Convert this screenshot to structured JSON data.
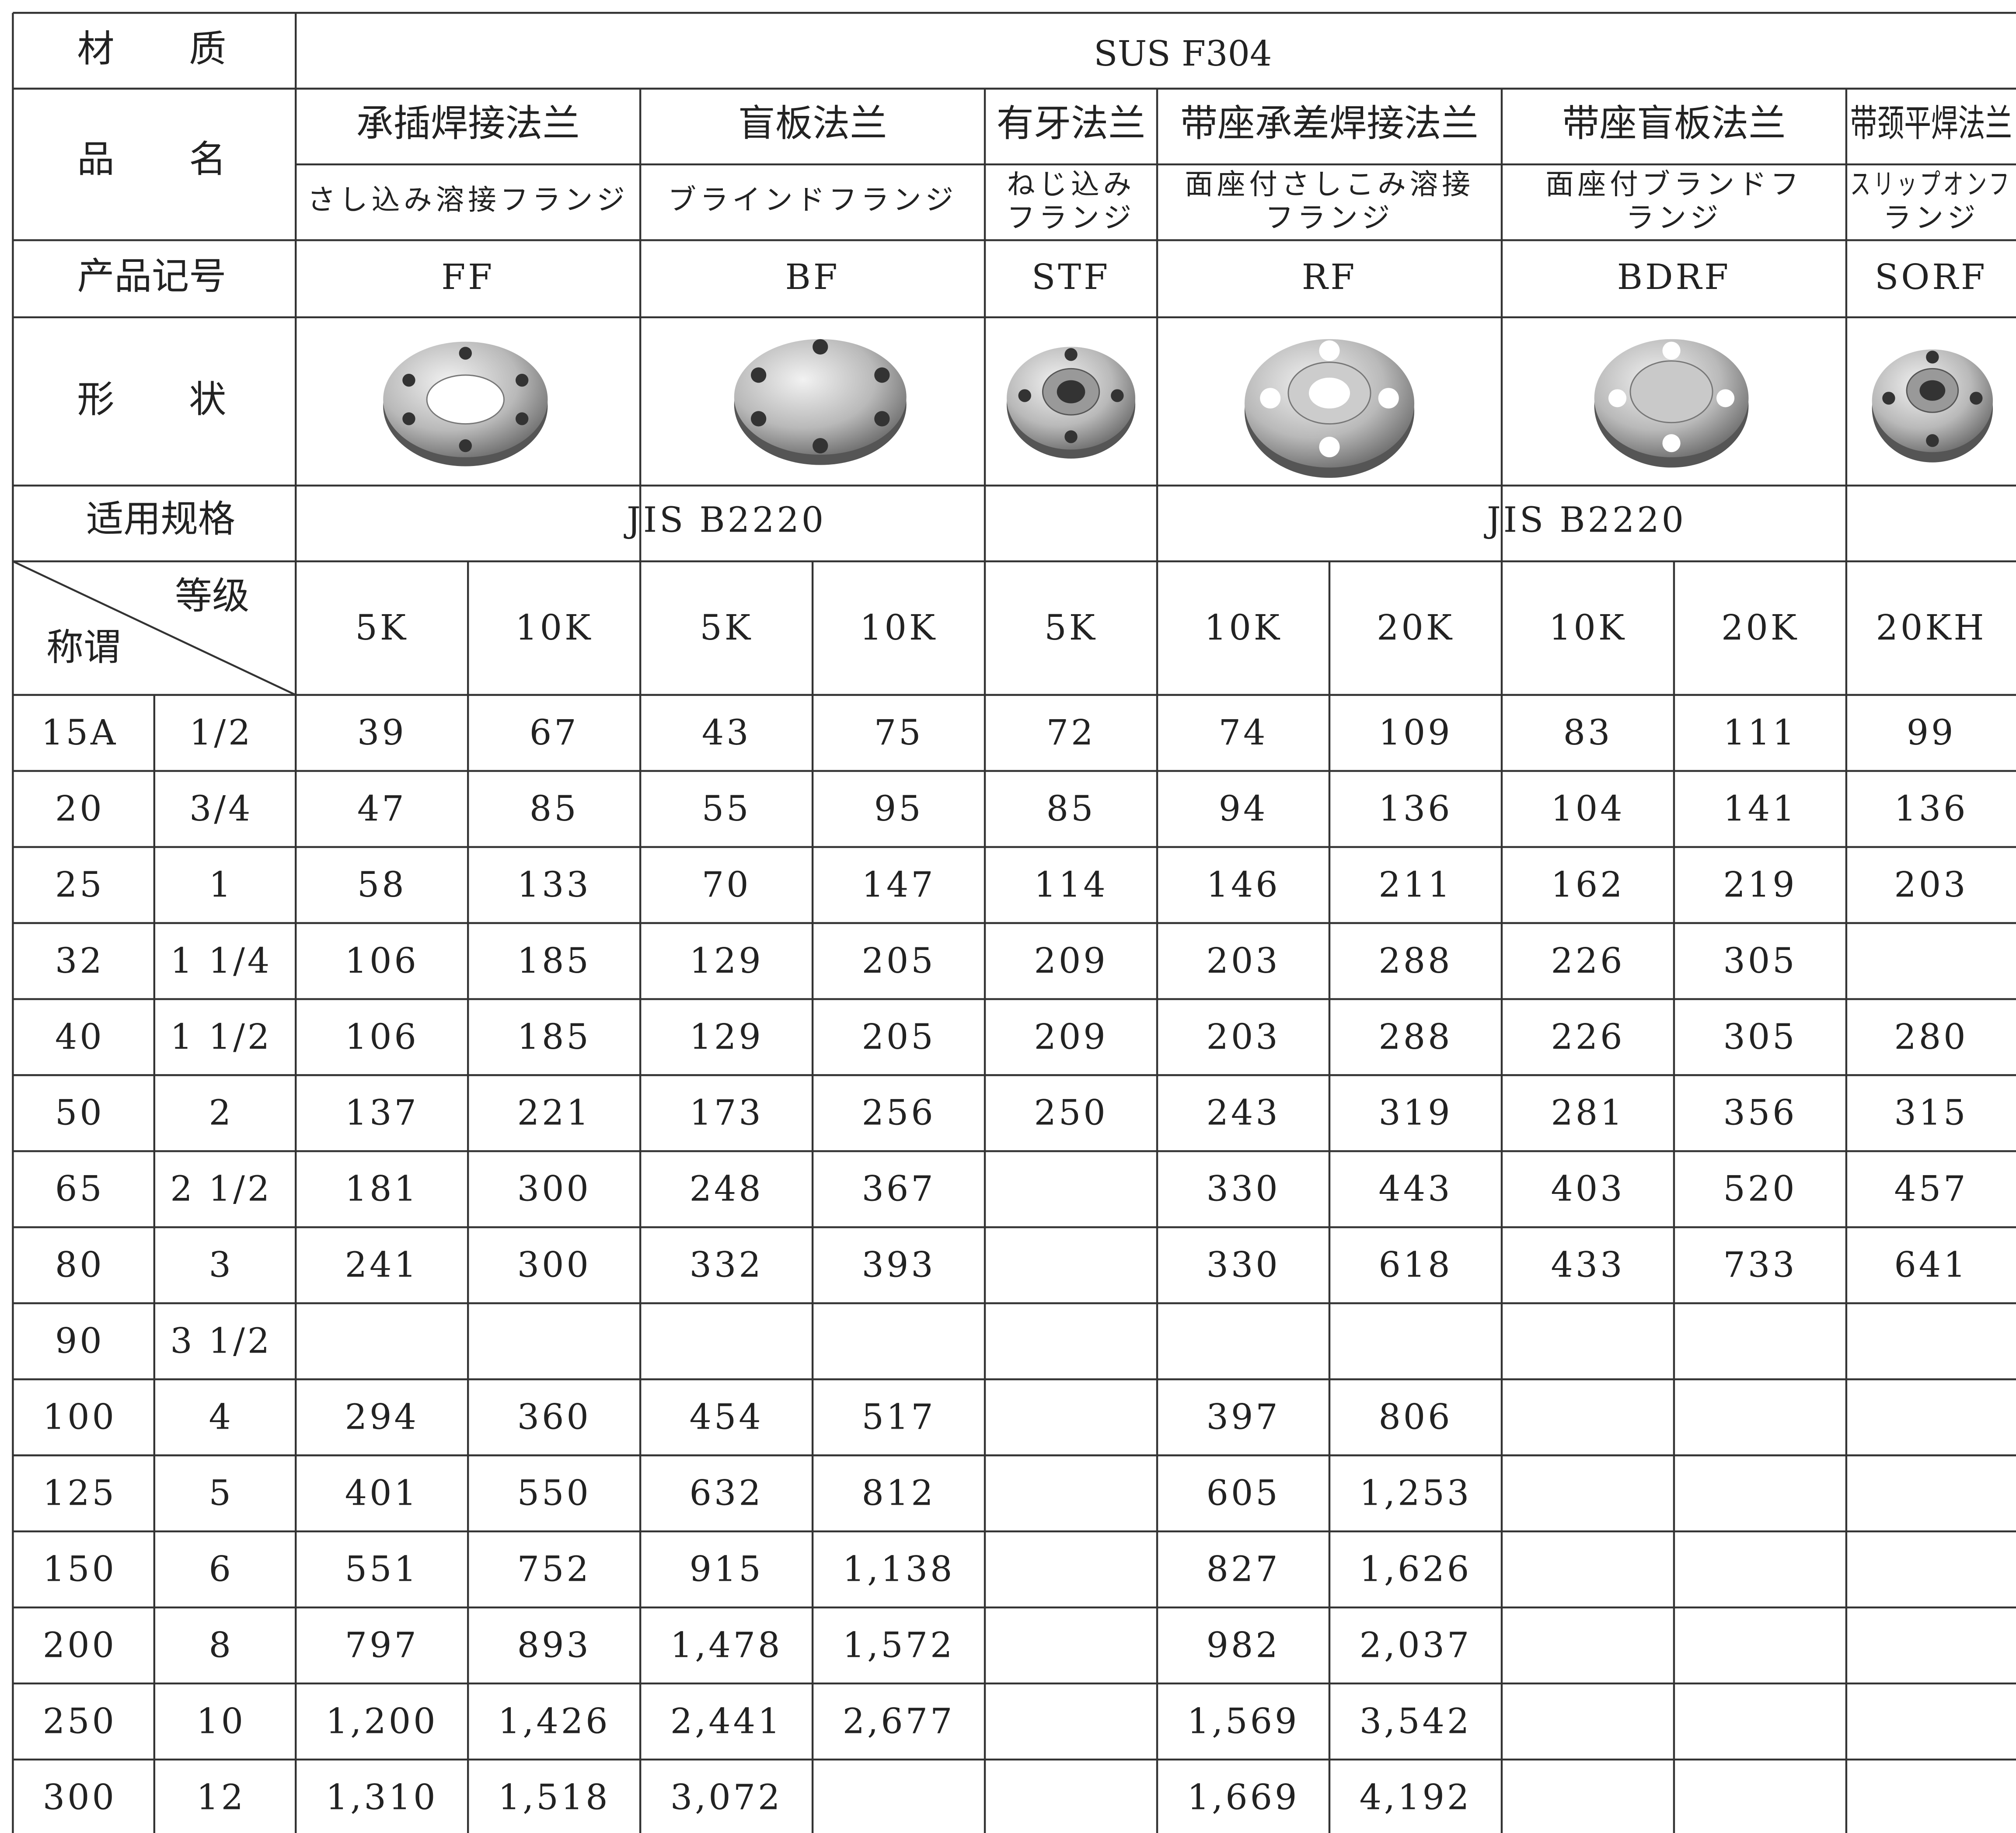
{
  "header": {
    "material_label": "材　　质",
    "material": "SUS F304",
    "name_label": "品　　名",
    "code_label": "产品记号",
    "shape_label": "形　　状",
    "spec_label": "适用规格",
    "grade_label": "等级",
    "size_label": "称谓"
  },
  "products": [
    {
      "name": "承插焊接法兰",
      "name_ja": [
        "さし込み溶接フランジ"
      ],
      "code": "FF"
    },
    {
      "name": "盲板法兰",
      "name_ja": [
        "ブラインドフランジ"
      ],
      "code": "BF"
    },
    {
      "name": "有牙法兰",
      "name_ja": [
        "ねじ込み",
        "フランジ"
      ],
      "code": "STF"
    },
    {
      "name": "带座承差焊接法兰",
      "name_ja": [
        "面座付さしこみ溶接",
        "フランジ"
      ],
      "code": "RF"
    },
    {
      "name": "带座盲板法兰",
      "name_ja": [
        "面座付ブランドフ",
        "ランジ"
      ],
      "code": "BDRF"
    },
    {
      "name": "带颈平焊法兰",
      "name_ja": [
        "スリップオンフ",
        "ランジ"
      ],
      "code": "SORF"
    }
  ],
  "specs": [
    "JIS B2220",
    "JIS B2220"
  ],
  "grades": [
    "5K",
    "10K",
    "5K",
    "10K",
    "5K",
    "10K",
    "20K",
    "10K",
    "20K",
    "20KH"
  ],
  "rows": [
    {
      "size": "15A",
      "inch": "1/2",
      "values": [
        "39",
        "67",
        "43",
        "75",
        "72",
        "74",
        "109",
        "83",
        "111",
        "99"
      ]
    },
    {
      "size": "20",
      "inch": "3/4",
      "values": [
        "47",
        "85",
        "55",
        "95",
        "85",
        "94",
        "136",
        "104",
        "141",
        "136"
      ]
    },
    {
      "size": "25",
      "inch": "1",
      "values": [
        "58",
        "133",
        "70",
        "147",
        "114",
        "146",
        "211",
        "162",
        "219",
        "203"
      ]
    },
    {
      "size": "32",
      "inch": "1 1/4",
      "values": [
        "106",
        "185",
        "129",
        "205",
        "209",
        "203",
        "288",
        "226",
        "305",
        null
      ]
    },
    {
      "size": "40",
      "inch": "1 1/2",
      "values": [
        "106",
        "185",
        "129",
        "205",
        "209",
        "203",
        "288",
        "226",
        "305",
        "280"
      ]
    },
    {
      "size": "50",
      "inch": "2",
      "values": [
        "137",
        "221",
        "173",
        "256",
        "250",
        "243",
        "319",
        "281",
        "356",
        "315"
      ]
    },
    {
      "size": "65",
      "inch": "2 1/2",
      "values": [
        "181",
        "300",
        "248",
        "367",
        null,
        "330",
        "443",
        "403",
        "520",
        "457"
      ]
    },
    {
      "size": "80",
      "inch": "3",
      "values": [
        "241",
        "300",
        "332",
        "393",
        null,
        "330",
        "618",
        "433",
        "733",
        "641"
      ]
    },
    {
      "size": "90",
      "inch": "3 1/2",
      "values": [
        null,
        null,
        null,
        null,
        null,
        null,
        null,
        null,
        null,
        null
      ]
    },
    {
      "size": "100",
      "inch": "4",
      "values": [
        "294",
        "360",
        "454",
        "517",
        null,
        "397",
        "806",
        null,
        null,
        null
      ]
    },
    {
      "size": "125",
      "inch": "5",
      "values": [
        "401",
        "550",
        "632",
        "812",
        null,
        "605",
        "1,253",
        null,
        null,
        null
      ]
    },
    {
      "size": "150",
      "inch": "6",
      "values": [
        "551",
        "752",
        "915",
        "1,138",
        null,
        "827",
        "1,626",
        null,
        null,
        null
      ]
    },
    {
      "size": "200",
      "inch": "8",
      "values": [
        "797",
        "893",
        "1,478",
        "1,572",
        null,
        "982",
        "2,037",
        null,
        null,
        null
      ]
    },
    {
      "size": "250",
      "inch": "10",
      "values": [
        "1,200",
        "1,426",
        "2,441",
        "2,677",
        null,
        "1,569",
        "3,542",
        null,
        null,
        null
      ]
    },
    {
      "size": "300",
      "inch": "12",
      "values": [
        "1,310",
        "1,518",
        "3,072",
        null,
        null,
        "1,669",
        "4,192",
        null,
        null,
        null
      ]
    }
  ]
}
